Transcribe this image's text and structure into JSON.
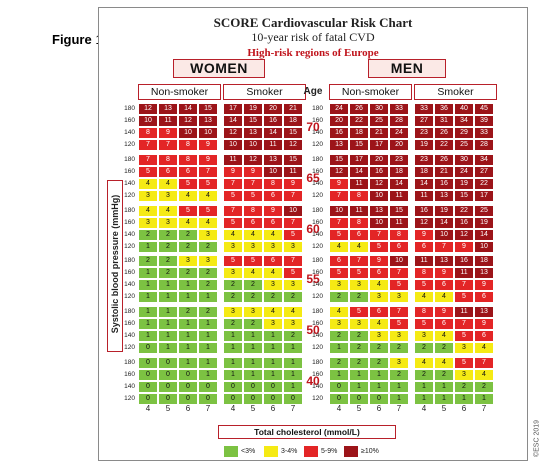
{
  "figure_label": {
    "word": "Figure",
    "num": "1"
  },
  "chart_data": {
    "type": "table",
    "title": "SCORE Cardiovascular Risk Chart",
    "subtitle": "10-year risk of fatal CVD",
    "region": "High-risk regions of Europe",
    "sexes": [
      "WOMEN",
      "MEN"
    ],
    "smoking": [
      "Non-smoker",
      "Smoker",
      "Non-smoker",
      "Smoker"
    ],
    "age_header": "Age",
    "ages": [
      "70",
      "65",
      "60",
      "55",
      "50",
      "40"
    ],
    "sbp": [
      "180",
      "160",
      "140",
      "120"
    ],
    "cholesterol": [
      "4",
      "5",
      "6",
      "7"
    ],
    "ylabel": "Systolic blood pressure (mmHg)",
    "xlabel": "Total cholesterol (mmol/L)",
    "legend": [
      {
        "label": "<3%",
        "color": "#7cc242"
      },
      {
        "label": "3-4%",
        "color": "#f5ea14"
      },
      {
        "label": "5-9%",
        "color": "#e32526"
      },
      {
        "label": "≥10%",
        "color": "#9c1419"
      }
    ],
    "colors": {
      "green": "#7cc242",
      "yellow": "#f5ea14",
      "red": "#e32526",
      "darkred": "#9c1419"
    },
    "copyright": "©ESC 2019",
    "values": [
      [
        [
          [
            12,
            13,
            14,
            15
          ],
          [
            10,
            11,
            12,
            13
          ],
          [
            8,
            9,
            10,
            10
          ],
          [
            7,
            7,
            8,
            9
          ]
        ],
        [
          [
            17,
            19,
            20,
            21
          ],
          [
            14,
            15,
            16,
            18
          ],
          [
            12,
            13,
            14,
            15
          ],
          [
            10,
            10,
            11,
            12
          ]
        ],
        [
          [
            24,
            26,
            30,
            33
          ],
          [
            20,
            22,
            25,
            28
          ],
          [
            16,
            18,
            21,
            24
          ],
          [
            13,
            15,
            17,
            20
          ]
        ],
        [
          [
            33,
            36,
            40,
            45
          ],
          [
            27,
            31,
            34,
            39
          ],
          [
            23,
            26,
            29,
            33
          ],
          [
            19,
            22,
            25,
            28
          ]
        ]
      ],
      [
        [
          [
            7,
            8,
            8,
            9
          ],
          [
            5,
            6,
            6,
            7
          ],
          [
            4,
            4,
            5,
            5
          ],
          [
            3,
            3,
            4,
            4
          ]
        ],
        [
          [
            11,
            12,
            13,
            15
          ],
          [
            9,
            9,
            10,
            11
          ],
          [
            7,
            7,
            8,
            9
          ],
          [
            5,
            5,
            6,
            7
          ]
        ],
        [
          [
            15,
            17,
            20,
            23
          ],
          [
            12,
            14,
            16,
            18
          ],
          [
            9,
            11,
            12,
            14
          ],
          [
            7,
            8,
            10,
            11
          ]
        ],
        [
          [
            23,
            26,
            30,
            34
          ],
          [
            18,
            21,
            24,
            27
          ],
          [
            14,
            16,
            19,
            22
          ],
          [
            11,
            13,
            15,
            17
          ]
        ]
      ],
      [
        [
          [
            4,
            4,
            5,
            5
          ],
          [
            3,
            3,
            4,
            4
          ],
          [
            2,
            2,
            2,
            3
          ],
          [
            1,
            2,
            2,
            2
          ]
        ],
        [
          [
            7,
            8,
            9,
            10
          ],
          [
            5,
            6,
            6,
            7
          ],
          [
            4,
            4,
            4,
            5
          ],
          [
            3,
            3,
            3,
            3
          ]
        ],
        [
          [
            10,
            11,
            13,
            15
          ],
          [
            7,
            8,
            10,
            11
          ],
          [
            5,
            6,
            7,
            8
          ],
          [
            4,
            4,
            5,
            6
          ]
        ],
        [
          [
            16,
            19,
            22,
            25
          ],
          [
            12,
            14,
            16,
            19
          ],
          [
            9,
            10,
            12,
            14
          ],
          [
            6,
            7,
            9,
            10
          ]
        ]
      ],
      [
        [
          [
            2,
            2,
            3,
            3
          ],
          [
            1,
            2,
            2,
            2
          ],
          [
            1,
            1,
            1,
            2
          ],
          [
            1,
            1,
            1,
            1
          ]
        ],
        [
          [
            5,
            5,
            6,
            7
          ],
          [
            3,
            4,
            4,
            5
          ],
          [
            2,
            2,
            3,
            3
          ],
          [
            2,
            2,
            2,
            2
          ]
        ],
        [
          [
            6,
            7,
            9,
            10
          ],
          [
            5,
            5,
            6,
            7
          ],
          [
            3,
            3,
            4,
            5
          ],
          [
            2,
            2,
            3,
            3
          ]
        ],
        [
          [
            11,
            13,
            16,
            18
          ],
          [
            8,
            9,
            11,
            13
          ],
          [
            5,
            6,
            7,
            9
          ],
          [
            4,
            4,
            5,
            6
          ]
        ]
      ],
      [
        [
          [
            1,
            1,
            2,
            2
          ],
          [
            1,
            1,
            1,
            1
          ],
          [
            1,
            1,
            1,
            1
          ],
          [
            0,
            1,
            1,
            1
          ]
        ],
        [
          [
            3,
            3,
            4,
            4
          ],
          [
            2,
            2,
            3,
            3
          ],
          [
            1,
            1,
            1,
            2
          ],
          [
            1,
            1,
            1,
            1
          ]
        ],
        [
          [
            4,
            5,
            6,
            7
          ],
          [
            3,
            3,
            4,
            5
          ],
          [
            2,
            2,
            3,
            3
          ],
          [
            1,
            2,
            2,
            2
          ]
        ],
        [
          [
            8,
            9,
            11,
            13
          ],
          [
            5,
            6,
            7,
            9
          ],
          [
            3,
            4,
            5,
            6
          ],
          [
            2,
            2,
            3,
            4
          ]
        ]
      ],
      [
        [
          [
            0,
            0,
            1,
            1
          ],
          [
            0,
            0,
            0,
            1
          ],
          [
            0,
            0,
            0,
            0
          ],
          [
            0,
            0,
            0,
            0
          ]
        ],
        [
          [
            1,
            1,
            1,
            1
          ],
          [
            1,
            1,
            1,
            1
          ],
          [
            0,
            0,
            0,
            1
          ],
          [
            0,
            0,
            0,
            0
          ]
        ],
        [
          [
            2,
            2,
            2,
            3
          ],
          [
            1,
            1,
            1,
            2
          ],
          [
            0,
            1,
            1,
            1
          ],
          [
            0,
            0,
            0,
            1
          ]
        ],
        [
          [
            4,
            4,
            5,
            7
          ],
          [
            2,
            2,
            3,
            4
          ],
          [
            1,
            1,
            2,
            2
          ],
          [
            1,
            1,
            1,
            1
          ]
        ]
      ]
    ]
  }
}
